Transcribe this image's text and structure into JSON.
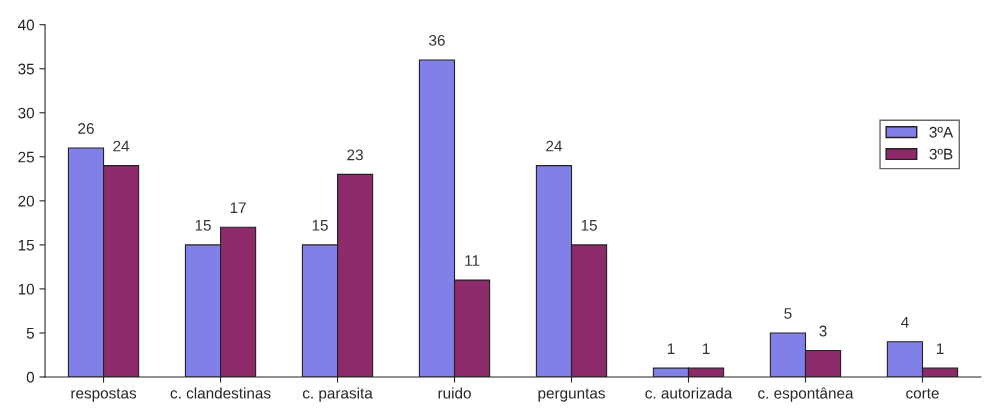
{
  "chart_data": {
    "type": "bar",
    "categories": [
      "respostas",
      "c. clandestinas",
      "c. parasita",
      "ruido",
      "perguntas",
      "c. autorizada",
      "c. espontânea",
      "corte"
    ],
    "series": [
      {
        "name": "3ºA",
        "color": "#8080e8",
        "values": [
          26,
          15,
          15,
          36,
          24,
          1,
          5,
          4
        ]
      },
      {
        "name": "3ºB",
        "color": "#8c2a6a",
        "values": [
          24,
          17,
          23,
          11,
          15,
          1,
          3,
          1
        ]
      }
    ],
    "ylim": [
      0,
      40
    ],
    "yticks": [
      0,
      5,
      10,
      15,
      20,
      25,
      30,
      35,
      40
    ],
    "data_labels": true,
    "grid": false,
    "legend": "right"
  }
}
